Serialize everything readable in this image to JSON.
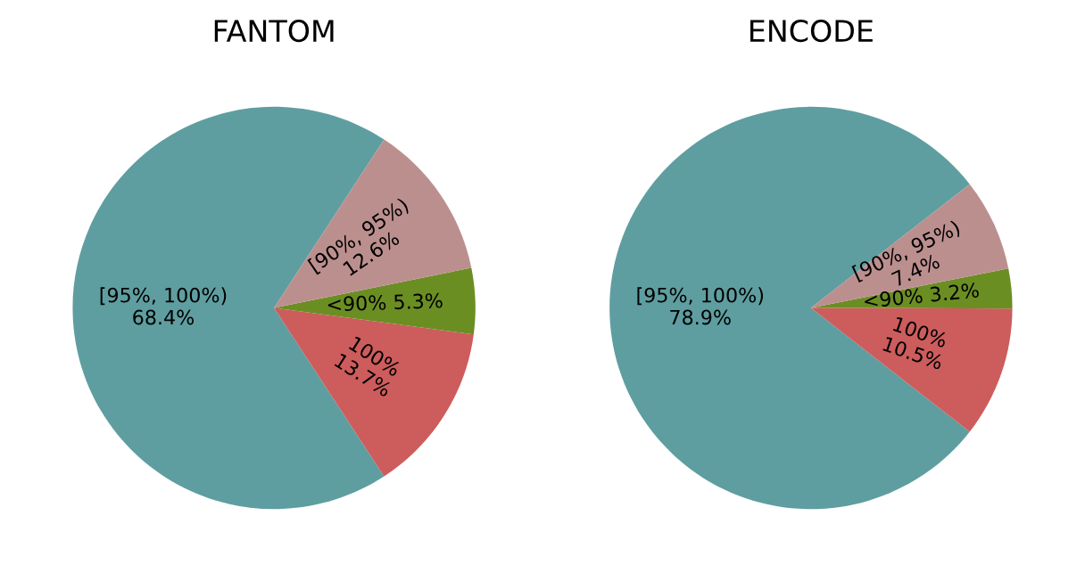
{
  "chart_data": [
    {
      "type": "pie",
      "title": "FANTOM",
      "categories": [
        "[95%, 100%)",
        "100%",
        "<90%",
        "[90%, 95%)"
      ],
      "values": [
        68.4,
        13.7,
        5.3,
        12.6
      ],
      "value_labels": [
        "68.4%",
        "13.7%",
        "5.3%",
        "12.6%"
      ],
      "colors": [
        "#5f9ea0",
        "#cd5c5c",
        "#6b8e23",
        "#bc8f8f"
      ]
    },
    {
      "type": "pie",
      "title": "ENCODE",
      "categories": [
        "[95%, 100%)",
        "100%",
        "<90%",
        "[90%, 95%)"
      ],
      "values": [
        78.9,
        10.5,
        3.2,
        7.4
      ],
      "value_labels": [
        "78.9%",
        "10.5%",
        "3.2%",
        "7.4%"
      ],
      "colors": [
        "#5f9ea0",
        "#cd5c5c",
        "#6b8e23",
        "#bc8f8f"
      ]
    }
  ]
}
